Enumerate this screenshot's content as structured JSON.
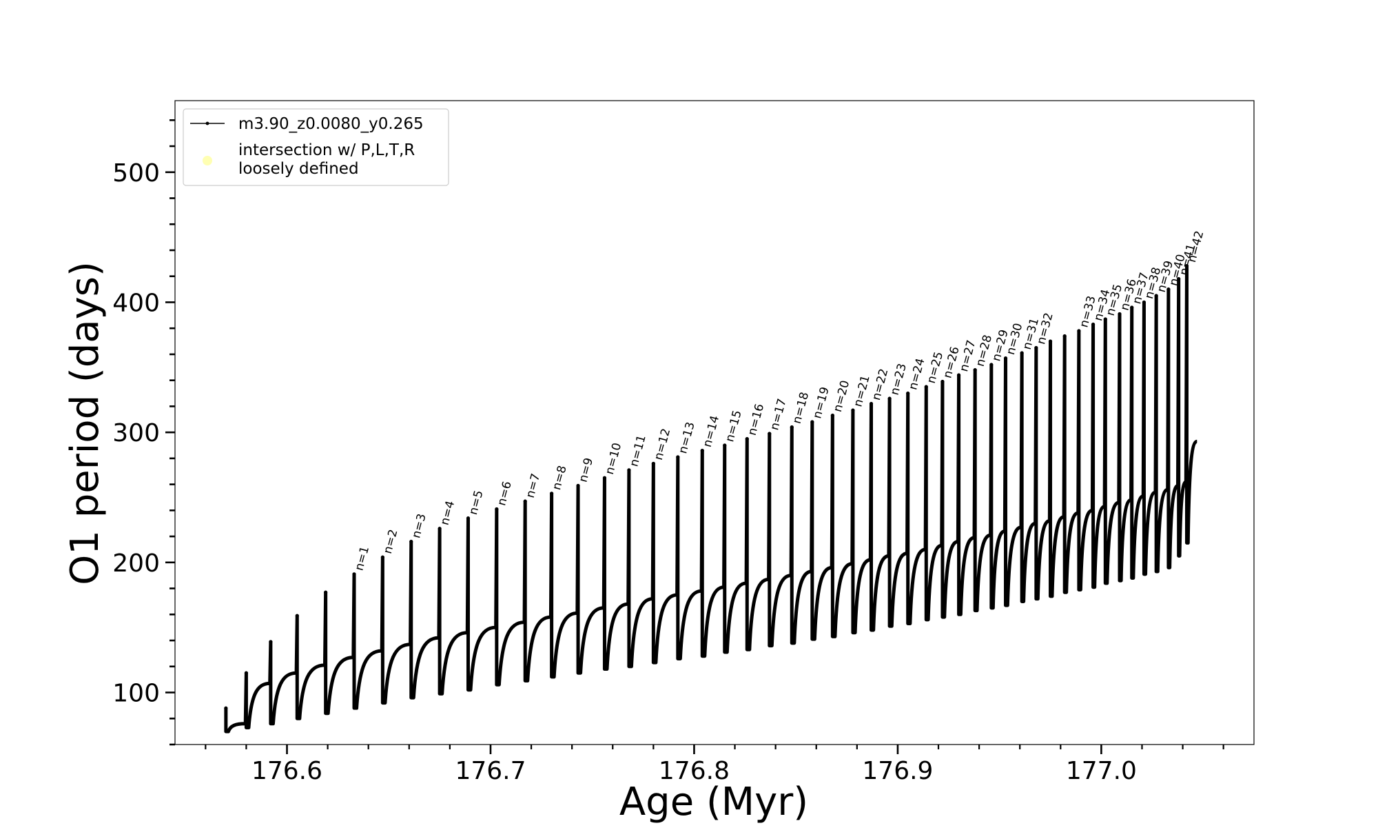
{
  "chart_data": {
    "type": "line",
    "xlabel": "Age (Myr)",
    "ylabel": "O1 period (days)",
    "xlim": [
      176.545,
      177.075
    ],
    "ylim": [
      60,
      555
    ],
    "x_major_ticks": [
      176.6,
      176.7,
      176.8,
      176.9,
      177.0
    ],
    "x_tick_labels": [
      "176.6",
      "176.7",
      "176.8",
      "176.9",
      "177.0"
    ],
    "x_minor_step": 0.02,
    "y_major_ticks": [
      100,
      200,
      300,
      400,
      500
    ],
    "y_tick_labels": [
      "100",
      "200",
      "300",
      "400",
      "500"
    ],
    "y_minor_step": 20,
    "legend": {
      "position": "top-left",
      "entries": [
        {
          "label": "m3.90_z0.0080_y0.265",
          "marker": "line-dot",
          "color": "#000000"
        },
        {
          "label": "intersection w/ P,L,T,R",
          "label2": "loosely defined",
          "marker": "circle",
          "color": "#ffffb3"
        }
      ]
    },
    "series": [
      {
        "name": "m3.90_z0.0080_y0.265",
        "color": "#000000",
        "pulses": [
          {
            "x": 176.57,
            "peak": 88,
            "trough": 70,
            "hold": 76
          },
          {
            "x": 176.58,
            "peak": 115,
            "trough": 73,
            "hold": 107
          },
          {
            "x": 176.592,
            "peak": 139,
            "trough": 76,
            "hold": 115
          },
          {
            "x": 176.605,
            "peak": 159,
            "trough": 80,
            "hold": 121
          },
          {
            "x": 176.619,
            "peak": 177,
            "trough": 84,
            "hold": 127
          },
          {
            "x": 176.633,
            "peak": 191,
            "trough": 88,
            "hold": 132,
            "label": "n=1"
          },
          {
            "x": 176.647,
            "peak": 204,
            "trough": 92,
            "hold": 137,
            "label": "n=2"
          },
          {
            "x": 176.661,
            "peak": 216,
            "trough": 96,
            "hold": 142,
            "label": "n=3"
          },
          {
            "x": 176.675,
            "peak": 226,
            "trough": 99,
            "hold": 146,
            "label": "n=4"
          },
          {
            "x": 176.689,
            "peak": 234,
            "trough": 102,
            "hold": 150,
            "label": "n=5"
          },
          {
            "x": 176.703,
            "peak": 241,
            "trough": 106,
            "hold": 154,
            "label": "n=6"
          },
          {
            "x": 176.717,
            "peak": 247,
            "trough": 109,
            "hold": 158,
            "label": "n=7"
          },
          {
            "x": 176.73,
            "peak": 253,
            "trough": 112,
            "hold": 161,
            "label": "n=8"
          },
          {
            "x": 176.743,
            "peak": 259,
            "trough": 115,
            "hold": 165,
            "label": "n=9"
          },
          {
            "x": 176.756,
            "peak": 265,
            "trough": 118,
            "hold": 168,
            "label": "n=10"
          },
          {
            "x": 176.768,
            "peak": 271,
            "trough": 120,
            "hold": 172,
            "label": "n=11"
          },
          {
            "x": 176.78,
            "peak": 276,
            "trough": 123,
            "hold": 175,
            "label": "n=12"
          },
          {
            "x": 176.792,
            "peak": 281,
            "trough": 126,
            "hold": 178,
            "label": "n=13"
          },
          {
            "x": 176.804,
            "peak": 286,
            "trough": 128,
            "hold": 181,
            "label": "n=14"
          },
          {
            "x": 176.815,
            "peak": 290,
            "trough": 131,
            "hold": 184,
            "label": "n=15"
          },
          {
            "x": 176.826,
            "peak": 295,
            "trough": 133,
            "hold": 187,
            "label": "n=16"
          },
          {
            "x": 176.837,
            "peak": 299,
            "trough": 136,
            "hold": 190,
            "label": "n=17"
          },
          {
            "x": 176.848,
            "peak": 304,
            "trough": 138,
            "hold": 193,
            "label": "n=18"
          },
          {
            "x": 176.858,
            "peak": 308,
            "trough": 141,
            "hold": 196,
            "label": "n=19"
          },
          {
            "x": 176.868,
            "peak": 313,
            "trough": 143,
            "hold": 199,
            "label": "n=20"
          },
          {
            "x": 176.878,
            "peak": 317,
            "trough": 146,
            "hold": 202,
            "label": "n=21"
          },
          {
            "x": 176.887,
            "peak": 322,
            "trough": 148,
            "hold": 205,
            "label": "n=22"
          },
          {
            "x": 176.896,
            "peak": 326,
            "trough": 151,
            "hold": 207,
            "label": "n=23"
          },
          {
            "x": 176.905,
            "peak": 330,
            "trough": 153,
            "hold": 210,
            "label": "n=24"
          },
          {
            "x": 176.914,
            "peak": 335,
            "trough": 156,
            "hold": 213,
            "label": "n=25"
          },
          {
            "x": 176.922,
            "peak": 339,
            "trough": 158,
            "hold": 216,
            "label": "n=26"
          },
          {
            "x": 176.93,
            "peak": 344,
            "trough": 160,
            "hold": 219,
            "label": "n=27"
          },
          {
            "x": 176.938,
            "peak": 348,
            "trough": 163,
            "hold": 221,
            "label": "n=28"
          },
          {
            "x": 176.946,
            "peak": 352,
            "trough": 165,
            "hold": 224,
            "label": "n=29"
          },
          {
            "x": 176.953,
            "peak": 357,
            "trough": 167,
            "hold": 227,
            "label": "n=30"
          },
          {
            "x": 176.961,
            "peak": 361,
            "trough": 170,
            "hold": 230,
            "label": "n=31"
          },
          {
            "x": 176.968,
            "peak": 365,
            "trough": 172,
            "hold": 232,
            "label": "n=32"
          },
          {
            "x": 176.975,
            "peak": 370,
            "trough": 174,
            "hold": 235
          },
          {
            "x": 176.982,
            "peak": 374,
            "trough": 177,
            "hold": 238
          },
          {
            "x": 176.989,
            "peak": 378,
            "trough": 179,
            "hold": 240,
            "label": "n=33"
          },
          {
            "x": 176.996,
            "peak": 383,
            "trough": 181,
            "hold": 243,
            "label": "n=34"
          },
          {
            "x": 177.002,
            "peak": 387,
            "trough": 184,
            "hold": 246,
            "label": "n=35"
          },
          {
            "x": 177.009,
            "peak": 391,
            "trough": 186,
            "hold": 248,
            "label": "n=36"
          },
          {
            "x": 177.015,
            "peak": 396,
            "trough": 188,
            "hold": 251,
            "label": "n=37"
          },
          {
            "x": 177.021,
            "peak": 400,
            "trough": 191,
            "hold": 254,
            "label": "n=38"
          },
          {
            "x": 177.027,
            "peak": 405,
            "trough": 193,
            "hold": 256,
            "label": "n=39"
          },
          {
            "x": 177.033,
            "peak": 410,
            "trough": 196,
            "hold": 259,
            "label": "n=40"
          },
          {
            "x": 177.038,
            "peak": 418,
            "trough": 205,
            "hold": 262,
            "label": "n=41"
          },
          {
            "x": 177.042,
            "peak": 428,
            "trough": 215,
            "hold": 265,
            "label": "n=42"
          }
        ],
        "end": {
          "x": 177.047,
          "y": 293
        }
      }
    ]
  }
}
